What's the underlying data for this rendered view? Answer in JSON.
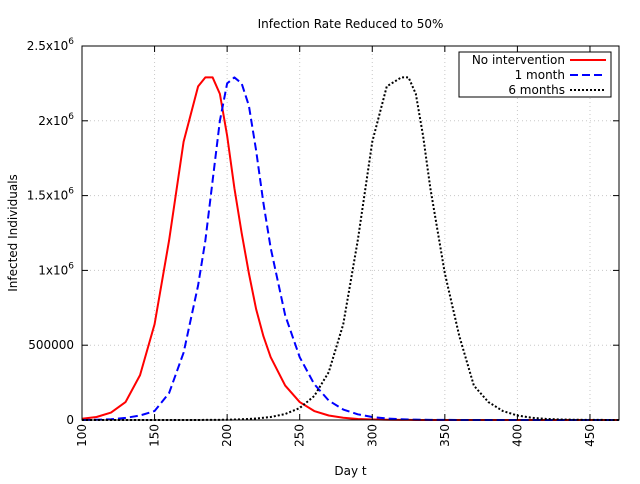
{
  "chart_data": {
    "type": "line",
    "title": "Infection Rate Reduced to 50%",
    "xlabel": "Day t",
    "ylabel": "Infected Individuals",
    "xlim": [
      100,
      470
    ],
    "ylim": [
      0,
      2500000
    ],
    "grid": true,
    "legend_position": "top-right",
    "x_ticks": [
      {
        "value": 100,
        "label": "100"
      },
      {
        "value": 150,
        "label": "150"
      },
      {
        "value": 200,
        "label": "200"
      },
      {
        "value": 250,
        "label": "250"
      },
      {
        "value": 300,
        "label": "300"
      },
      {
        "value": 350,
        "label": "350"
      },
      {
        "value": 400,
        "label": "400"
      },
      {
        "value": 450,
        "label": "450"
      }
    ],
    "y_ticks": [
      {
        "value": 0,
        "mantissa": "0",
        "exp": ""
      },
      {
        "value": 500000,
        "mantissa": "500000",
        "exp": ""
      },
      {
        "value": 1000000,
        "mantissa": "1x10",
        "exp": "6"
      },
      {
        "value": 1500000,
        "mantissa": "1.5x10",
        "exp": "6"
      },
      {
        "value": 2000000,
        "mantissa": "2x10",
        "exp": "6"
      },
      {
        "value": 2500000,
        "mantissa": "2.5x10",
        "exp": "6"
      }
    ],
    "x": [
      100,
      110,
      120,
      130,
      140,
      150,
      160,
      170,
      180,
      185,
      190,
      195,
      200,
      205,
      210,
      215,
      220,
      225,
      230,
      240,
      250,
      260,
      270,
      280,
      290,
      300,
      310,
      320,
      325,
      330,
      335,
      340,
      350,
      360,
      370,
      380,
      390,
      400,
      410,
      420,
      430,
      440,
      450,
      460,
      470
    ],
    "series": [
      {
        "name": "No intervention",
        "color": "#ff0000",
        "dash": "solid",
        "values": [
          8000,
          20000,
          50000,
          120000,
          300000,
          640000,
          1200000,
          1860000,
          2230000,
          2290000,
          2290000,
          2180000,
          1900000,
          1550000,
          1250000,
          980000,
          740000,
          560000,
          420000,
          230000,
          120000,
          60000,
          30000,
          15000,
          7000,
          3500,
          1700,
          800,
          500,
          400,
          300,
          200,
          100,
          50,
          20,
          10,
          5,
          2,
          1,
          0,
          0,
          0,
          0,
          0,
          0
        ]
      },
      {
        "name": "1 month",
        "color": "#0000ff",
        "dash": "dashed",
        "values": [
          400,
          1500,
          5000,
          14000,
          30000,
          60000,
          180000,
          450000,
          900000,
          1200000,
          1600000,
          2000000,
          2250000,
          2290000,
          2250000,
          2100000,
          1800000,
          1450000,
          1150000,
          700000,
          420000,
          240000,
          130000,
          70000,
          38000,
          20000,
          10000,
          5000,
          3500,
          2500,
          1800,
          1200,
          600,
          300,
          150,
          70,
          30,
          15,
          7,
          3,
          1,
          0,
          0,
          0,
          0
        ]
      },
      {
        "name": "6 months",
        "color": "#000000",
        "dash": "dotted",
        "values": [
          0,
          0,
          0,
          0,
          0,
          0,
          0,
          100,
          300,
          500,
          800,
          1200,
          2000,
          3000,
          5000,
          7000,
          10000,
          15000,
          20000,
          40000,
          80000,
          160000,
          320000,
          640000,
          1200000,
          1860000,
          2230000,
          2290000,
          2290000,
          2180000,
          1900000,
          1550000,
          980000,
          560000,
          230000,
          120000,
          60000,
          30000,
          15000,
          7000,
          3500,
          1700,
          800,
          400,
          200
        ]
      }
    ]
  }
}
